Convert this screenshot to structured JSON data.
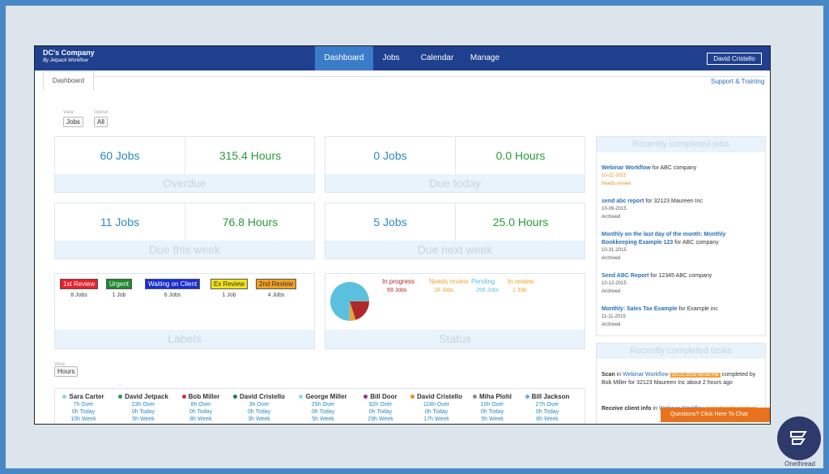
{
  "app": {
    "company": "DC's Company",
    "byline": "By Jetpack Workflow",
    "nav": [
      "Dashboard",
      "Jobs",
      "Calendar",
      "Manage"
    ],
    "user": "David Cristello"
  },
  "tab": "Dashboard",
  "support": "Support & Training",
  "filters": [
    {
      "label": "View",
      "value": "Jobs"
    },
    {
      "label": "Owner",
      "value": "All"
    }
  ],
  "summary": [
    {
      "jobs": "60 Jobs",
      "hours": "315.4 Hours",
      "caption": "Overdue"
    },
    {
      "jobs": "0 Jobs",
      "hours": "0.0 Hours",
      "caption": "Due today"
    },
    {
      "jobs": "11 Jobs",
      "hours": "76.8 Hours",
      "caption": "Due this week"
    },
    {
      "jobs": "5 Jobs",
      "hours": "25.0 Hours",
      "caption": "Due next week"
    }
  ],
  "labels": {
    "title": "Labels",
    "items": [
      {
        "name": "1st Review",
        "count": "8 Jobs",
        "color": "#e8202a",
        "text": "#ffffff"
      },
      {
        "name": "Urgent",
        "count": "1 Job",
        "color": "#1e8a2e",
        "text": "#ffffff"
      },
      {
        "name": "Waiting on Client",
        "count": "6 Jobs",
        "color": "#1b2ed0",
        "text": "#ffffff"
      },
      {
        "name": "Ex Review",
        "count": "1 Job",
        "color": "#f2e21a",
        "text": "#333333"
      },
      {
        "name": "2nd Review",
        "count": "4 Jobs",
        "color": "#f0a020",
        "text": "#333333"
      }
    ]
  },
  "status": {
    "title": "Status",
    "items": [
      {
        "name": "In progress",
        "label": "69 Jobs",
        "value": 69,
        "color": "#b0282c"
      },
      {
        "name": "Needs review",
        "label": "18 Jobs",
        "value": 18,
        "color": "#e8a33a"
      },
      {
        "name": "Pending",
        "label": "256 Jobs",
        "value": 256,
        "color": "#5bc0de"
      },
      {
        "name": "In review",
        "label": "1 Job",
        "value": 1,
        "color": "#f0a020"
      }
    ]
  },
  "recent_jobs": {
    "title": "Recently completed jobs",
    "items": [
      {
        "link": "Webinar Workflow",
        "rest": "for ABC company",
        "date": "10-21-2015",
        "state": "Needs review"
      },
      {
        "link": "send abc report",
        "rest": "for 32123 Maureen Inc",
        "date": "10-09-2015",
        "state": "Archived"
      },
      {
        "link": "Monthly on the last day of the month: Monthly Bookkeeping Example 123",
        "rest": "for ABC company",
        "date": "10-31-2015",
        "state": "Archived"
      },
      {
        "link": "Send ABC Report",
        "rest": "for 12345 ABC company",
        "date": "10-12-2015",
        "state": "Archived"
      },
      {
        "link": "Monthly: Sales Tax Example",
        "rest": "for Example inc",
        "date": "11-11-2015",
        "state": "Archived"
      }
    ]
  },
  "recent_tasks": {
    "title": "Recently completed tasks",
    "items": [
      {
        "task": "Scan",
        "in": "in",
        "job": "Webinar Workflow",
        "badge": "10-21-2015 09:08 PM",
        "detail": "completed by Bob Miller for 32123 Maureen Inc about 2 hours ago"
      },
      {
        "task": "Receive client info",
        "in": "in",
        "job": "Webinar Workflow",
        "badge": "10-21-2015 09:08 PM"
      }
    ]
  },
  "team_view": {
    "label": "View",
    "value": "Hours"
  },
  "team": [
    {
      "name": "Sara Carter",
      "color": "#8ed8d0",
      "over": "7h Over",
      "today": "0h Today",
      "week": "10h Week"
    },
    {
      "name": "David Jetpack",
      "color": "#2a9a5a",
      "over": "23h Over",
      "today": "0h Today",
      "week": "5h Week"
    },
    {
      "name": "Bob Miller",
      "color": "#c8323a",
      "over": "8h Over",
      "today": "0h Today",
      "week": "8h Week"
    },
    {
      "name": "David Cristello",
      "color": "#1f7a4a",
      "over": "3h Over",
      "today": "0h Today",
      "week": "3h Week"
    },
    {
      "name": "George Miller",
      "color": "#7fe0e8",
      "over": "25h Over",
      "today": "0h Today",
      "week": "5h Week"
    },
    {
      "name": "Bill Door",
      "color": "#a02a8a",
      "over": "92h Over",
      "today": "0h Today",
      "week": "29h Week"
    },
    {
      "name": "David Cristello",
      "color": "#e8902a",
      "over": "118h Over",
      "today": "0h Today",
      "week": "17h Week"
    },
    {
      "name": "Miha Plohl",
      "color": "#8a8a8a",
      "over": "10h Over",
      "today": "0h Today",
      "week": "5h Week"
    },
    {
      "name": "Bill Jackson",
      "color": "#6aaee8",
      "over": "27h Over",
      "today": "0h Today",
      "week": "6h Week"
    }
  ],
  "chat": "Questions? Click Here To Chat",
  "brand": "Onethread"
}
